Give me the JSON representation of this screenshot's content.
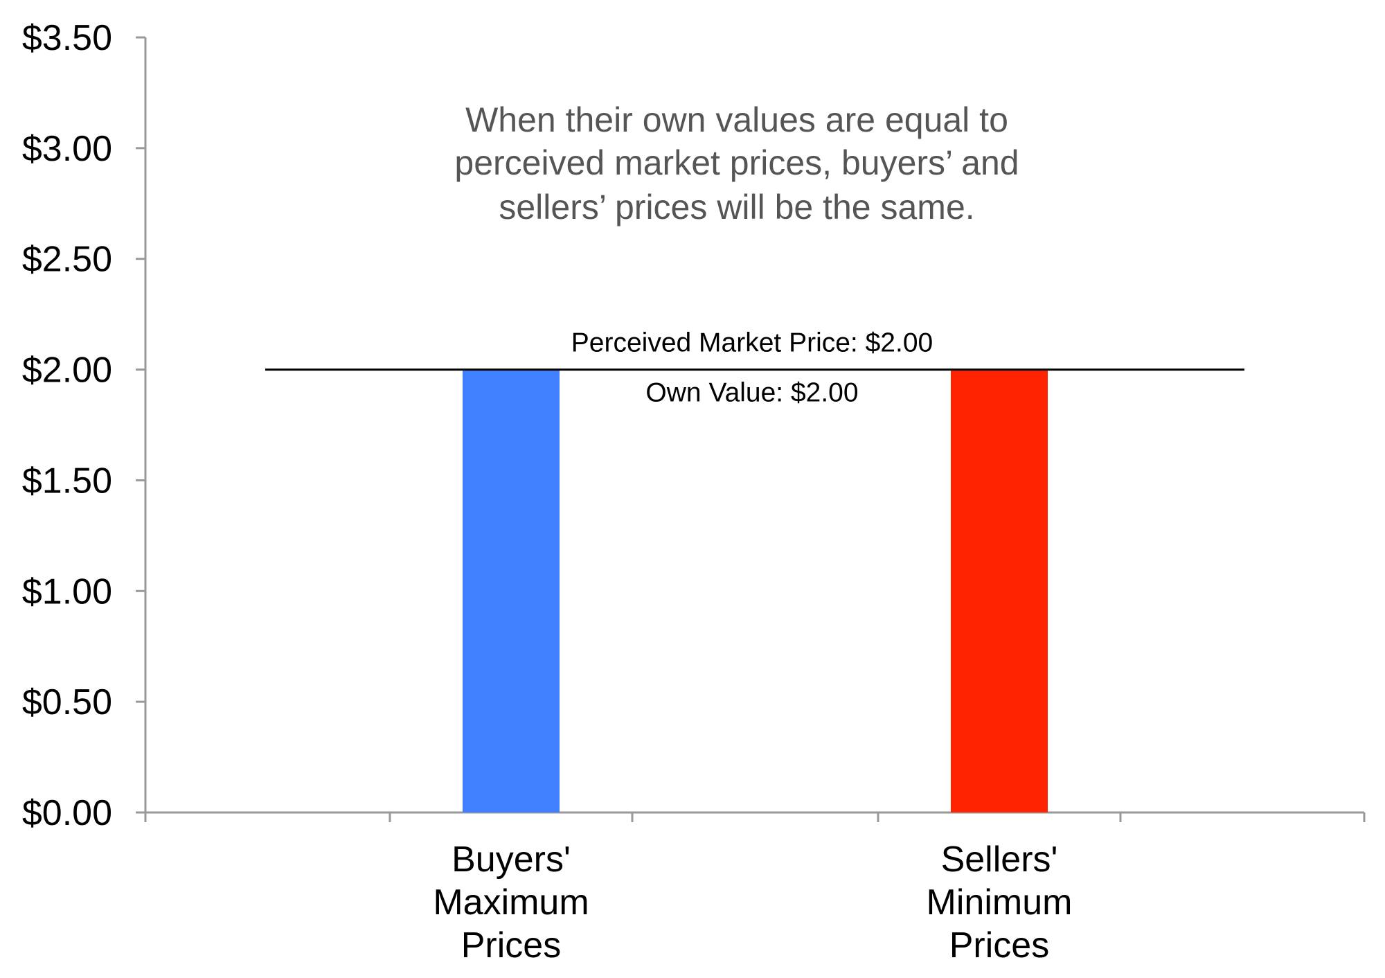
{
  "chart_data": {
    "type": "bar",
    "categories": [
      [
        "Buyers'",
        "Maximum",
        "Prices"
      ],
      [
        "Sellers'",
        "Minimum",
        "Prices"
      ]
    ],
    "values": [
      2.0,
      2.0
    ],
    "bar_colors": [
      "#4080FF",
      "#FF2200"
    ],
    "ylim": [
      0,
      3.5
    ],
    "yticks": [
      {
        "value": 0.0,
        "label": "$0.00"
      },
      {
        "value": 0.5,
        "label": "$0.50"
      },
      {
        "value": 1.0,
        "label": "$1.00"
      },
      {
        "value": 1.5,
        "label": "$1.50"
      },
      {
        "value": 2.0,
        "label": "$2.00"
      },
      {
        "value": 2.5,
        "label": "$2.50"
      },
      {
        "value": 3.0,
        "label": "$3.00"
      },
      {
        "value": 3.5,
        "label": "$3.50"
      }
    ],
    "reference_line": {
      "value": 2.0,
      "label_above": "Perceived Market Price: $2.00",
      "label_below": "Own Value: $2.00"
    },
    "annotation": [
      "When their own values are equal to",
      "perceived market prices, buyers’ and",
      "sellers’ prices will be the same."
    ],
    "axis_color": "#999999",
    "grid": false,
    "legend": "none"
  }
}
